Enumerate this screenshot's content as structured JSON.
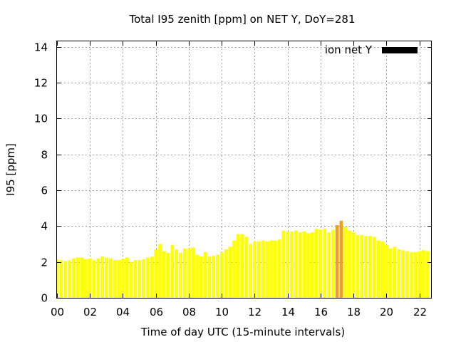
{
  "chart_data": {
    "type": "bar",
    "title": "Total I95 zenith [ppm] on NET Y, DoY=281",
    "xlabel": "Time of day UTC (15-minute intervals)",
    "ylabel": "I95 [ppm]",
    "xlim": [
      0,
      22.75
    ],
    "ylim": [
      0,
      14.3
    ],
    "x_tick_labels": [
      "00",
      "02",
      "04",
      "06",
      "08",
      "10",
      "12",
      "14",
      "16",
      "18",
      "20",
      "22"
    ],
    "y_tick_labels": [
      "0",
      "2",
      "4",
      "6",
      "8",
      "10",
      "12",
      "14"
    ],
    "grid": true,
    "legend": {
      "label": "ion net Y",
      "placement": "top-right"
    },
    "bar_width_hours": 0.2,
    "colors": {
      "bar": "#ffff00",
      "highlight": "#f0a020",
      "legend_swatch": "#000000",
      "grid": "#a0a0a0"
    },
    "highlighted_times": [
      17.0,
      17.25
    ],
    "series": [
      {
        "values": [
          {
            "t": 0.0,
            "v": 2.15
          },
          {
            "t": 0.25,
            "v": 2.1
          },
          {
            "t": 0.5,
            "v": 2.05
          },
          {
            "t": 0.75,
            "v": 2.1
          },
          {
            "t": 1.0,
            "v": 2.2
          },
          {
            "t": 1.25,
            "v": 2.25
          },
          {
            "t": 1.5,
            "v": 2.25
          },
          {
            "t": 1.75,
            "v": 2.15
          },
          {
            "t": 2.0,
            "v": 2.2
          },
          {
            "t": 2.25,
            "v": 2.1
          },
          {
            "t": 2.5,
            "v": 2.2
          },
          {
            "t": 2.75,
            "v": 2.3
          },
          {
            "t": 3.0,
            "v": 2.25
          },
          {
            "t": 3.25,
            "v": 2.2
          },
          {
            "t": 3.5,
            "v": 2.1
          },
          {
            "t": 3.75,
            "v": 2.1
          },
          {
            "t": 4.0,
            "v": 2.15
          },
          {
            "t": 4.25,
            "v": 2.25
          },
          {
            "t": 4.5,
            "v": 2.0
          },
          {
            "t": 4.75,
            "v": 2.1
          },
          {
            "t": 5.0,
            "v": 2.1
          },
          {
            "t": 5.25,
            "v": 2.15
          },
          {
            "t": 5.5,
            "v": 2.25
          },
          {
            "t": 5.75,
            "v": 2.3
          },
          {
            "t": 6.0,
            "v": 2.7
          },
          {
            "t": 6.25,
            "v": 3.0
          },
          {
            "t": 6.5,
            "v": 2.6
          },
          {
            "t": 6.75,
            "v": 2.5
          },
          {
            "t": 7.0,
            "v": 2.95
          },
          {
            "t": 7.25,
            "v": 2.7
          },
          {
            "t": 7.5,
            "v": 2.5
          },
          {
            "t": 7.75,
            "v": 2.75
          },
          {
            "t": 8.0,
            "v": 2.75
          },
          {
            "t": 8.25,
            "v": 2.8
          },
          {
            "t": 8.5,
            "v": 2.4
          },
          {
            "t": 8.75,
            "v": 2.3
          },
          {
            "t": 9.0,
            "v": 2.55
          },
          {
            "t": 9.25,
            "v": 2.3
          },
          {
            "t": 9.5,
            "v": 2.35
          },
          {
            "t": 9.75,
            "v": 2.4
          },
          {
            "t": 10.0,
            "v": 2.55
          },
          {
            "t": 10.25,
            "v": 2.7
          },
          {
            "t": 10.5,
            "v": 2.85
          },
          {
            "t": 10.75,
            "v": 3.2
          },
          {
            "t": 11.0,
            "v": 3.55
          },
          {
            "t": 11.25,
            "v": 3.55
          },
          {
            "t": 11.5,
            "v": 3.4
          },
          {
            "t": 11.75,
            "v": 3.0
          },
          {
            "t": 12.0,
            "v": 3.15
          },
          {
            "t": 12.25,
            "v": 3.15
          },
          {
            "t": 12.5,
            "v": 3.2
          },
          {
            "t": 12.75,
            "v": 3.15
          },
          {
            "t": 13.0,
            "v": 3.2
          },
          {
            "t": 13.25,
            "v": 3.2
          },
          {
            "t": 13.5,
            "v": 3.25
          },
          {
            "t": 13.75,
            "v": 3.75
          },
          {
            "t": 14.0,
            "v": 3.7
          },
          {
            "t": 14.25,
            "v": 3.7
          },
          {
            "t": 14.5,
            "v": 3.75
          },
          {
            "t": 14.75,
            "v": 3.65
          },
          {
            "t": 15.0,
            "v": 3.7
          },
          {
            "t": 15.25,
            "v": 3.6
          },
          {
            "t": 15.5,
            "v": 3.65
          },
          {
            "t": 15.75,
            "v": 3.85
          },
          {
            "t": 16.0,
            "v": 3.8
          },
          {
            "t": 16.25,
            "v": 3.85
          },
          {
            "t": 16.5,
            "v": 3.65
          },
          {
            "t": 16.75,
            "v": 3.8
          },
          {
            "t": 17.0,
            "v": 4.05
          },
          {
            "t": 17.25,
            "v": 4.3
          },
          {
            "t": 17.5,
            "v": 3.95
          },
          {
            "t": 17.75,
            "v": 3.75
          },
          {
            "t": 18.0,
            "v": 3.65
          },
          {
            "t": 18.25,
            "v": 3.5
          },
          {
            "t": 18.5,
            "v": 3.5
          },
          {
            "t": 18.75,
            "v": 3.45
          },
          {
            "t": 19.0,
            "v": 3.45
          },
          {
            "t": 19.25,
            "v": 3.4
          },
          {
            "t": 19.5,
            "v": 3.2
          },
          {
            "t": 19.75,
            "v": 3.15
          },
          {
            "t": 20.0,
            "v": 2.95
          },
          {
            "t": 20.25,
            "v": 2.75
          },
          {
            "t": 20.5,
            "v": 2.85
          },
          {
            "t": 20.75,
            "v": 2.7
          },
          {
            "t": 21.0,
            "v": 2.65
          },
          {
            "t": 21.25,
            "v": 2.6
          },
          {
            "t": 21.5,
            "v": 2.55
          },
          {
            "t": 21.75,
            "v": 2.55
          },
          {
            "t": 22.0,
            "v": 2.6
          },
          {
            "t": 22.25,
            "v": 2.65
          },
          {
            "t": 22.5,
            "v": 2.6
          }
        ]
      }
    ]
  }
}
